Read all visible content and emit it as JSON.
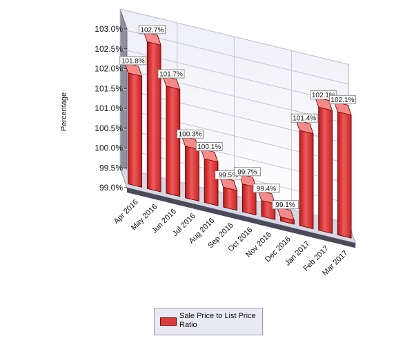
{
  "chart_data": {
    "type": "bar",
    "title": "",
    "xlabel": "",
    "ylabel": "Percentage",
    "categories": [
      "Apr 2016",
      "May 2016",
      "Jun 2016",
      "Jul 2016",
      "Aug 2016",
      "Sep 2016",
      "Oct 2016",
      "Nov 2016",
      "Dec 2016",
      "Jan 2017",
      "Feb 2017",
      "Mar 2017"
    ],
    "series": [
      {
        "name": "Sale Price to List Price Ratio",
        "values": [
          101.8,
          102.7,
          101.7,
          100.3,
          100.1,
          99.5,
          99.7,
          99.4,
          99.1,
          101.4,
          102.1,
          102.1
        ],
        "labels": [
          "101.8%",
          "102.7%",
          "101.7%",
          "100.3%",
          "100.1%",
          "99.5%",
          "99.7%",
          "99.4%",
          "99.1%",
          "101.4%",
          "102.1%",
          "102.1%"
        ],
        "color": "#d93a3a"
      }
    ],
    "yticks": [
      99.0,
      99.5,
      100.0,
      100.5,
      101.0,
      101.5,
      102.0,
      102.5,
      103.0
    ],
    "ytick_labels": [
      "99.0%",
      "99.5%",
      "100.0%",
      "100.5%",
      "101.0%",
      "101.5%",
      "102.0%",
      "102.5%",
      "103.0%"
    ],
    "ylim": [
      99.0,
      103.0
    ],
    "grid": true,
    "style": "3d",
    "legend": "bottom-center"
  }
}
